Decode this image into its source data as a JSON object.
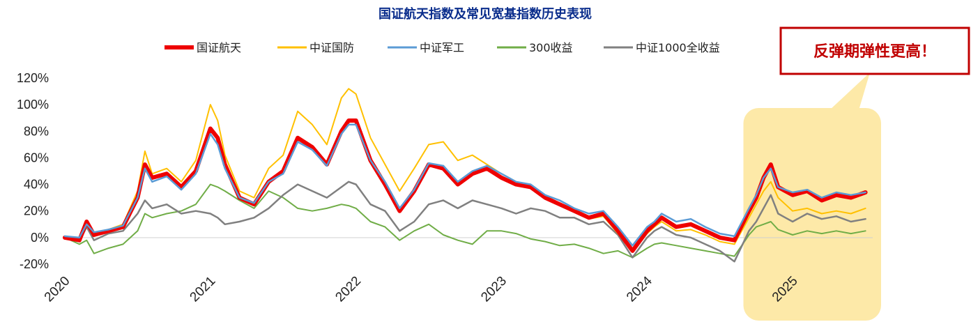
{
  "chart_data": {
    "type": "line",
    "title": "国证航天指数及常见宽基指数历史表现",
    "xlabel": "",
    "ylabel": "",
    "ylim": [
      -20,
      120
    ],
    "yticks": [
      "-20%",
      "0%",
      "20%",
      "40%",
      "60%",
      "80%",
      "100%",
      "120%"
    ],
    "yticks_values": [
      -20,
      0,
      20,
      40,
      60,
      80,
      100,
      120
    ],
    "xticks": [
      "2020",
      "2021",
      "2022",
      "2023",
      "2024",
      "2025"
    ],
    "xticks_values": [
      2020,
      2021,
      2022,
      2023,
      2024,
      2025
    ],
    "xlim": [
      2020,
      2025.55
    ],
    "grid": false,
    "legend_position": "top",
    "highlight": {
      "x_range": [
        2024.7,
        2025.55
      ],
      "color": "#fde9a8"
    },
    "callout": {
      "text": "反弹期弹性更高！",
      "border_color": "#c00000"
    },
    "series": [
      {
        "name": "国证航天",
        "color": "#ee0000",
        "width": 6,
        "x": [
          2020.0,
          2020.1,
          2020.15,
          2020.2,
          2020.3,
          2020.4,
          2020.5,
          2020.55,
          2020.6,
          2020.7,
          2020.8,
          2020.9,
          2021.0,
          2021.05,
          2021.1,
          2021.2,
          2021.3,
          2021.4,
          2021.5,
          2021.6,
          2021.7,
          2021.8,
          2021.9,
          2021.95,
          2022.0,
          2022.1,
          2022.2,
          2022.3,
          2022.4,
          2022.5,
          2022.6,
          2022.7,
          2022.8,
          2022.9,
          2023.0,
          2023.1,
          2023.2,
          2023.3,
          2023.4,
          2023.5,
          2023.6,
          2023.7,
          2023.8,
          2023.9,
          2024.0,
          2024.05,
          2024.1,
          2024.2,
          2024.3,
          2024.4,
          2024.5,
          2024.6,
          2024.7,
          2024.75,
          2024.8,
          2024.85,
          2024.9,
          2024.95,
          2025.0,
          2025.1,
          2025.2,
          2025.3,
          2025.4,
          2025.5
        ],
        "y": [
          0,
          -2,
          12,
          2,
          5,
          8,
          30,
          55,
          45,
          48,
          38,
          50,
          82,
          75,
          55,
          30,
          25,
          42,
          50,
          75,
          68,
          55,
          80,
          88,
          88,
          58,
          40,
          20,
          35,
          55,
          52,
          40,
          48,
          52,
          45,
          40,
          38,
          30,
          25,
          20,
          15,
          18,
          5,
          -10,
          5,
          10,
          15,
          8,
          10,
          5,
          0,
          -2,
          20,
          30,
          45,
          55,
          38,
          35,
          32,
          35,
          28,
          32,
          30,
          34
        ]
      },
      {
        "name": "中证国防",
        "color": "#ffc000",
        "width": 2,
        "x": [
          2020.0,
          2020.1,
          2020.15,
          2020.2,
          2020.3,
          2020.4,
          2020.5,
          2020.55,
          2020.6,
          2020.7,
          2020.8,
          2020.9,
          2021.0,
          2021.05,
          2021.1,
          2021.2,
          2021.3,
          2021.4,
          2021.5,
          2021.6,
          2021.7,
          2021.8,
          2021.9,
          2021.95,
          2022.0,
          2022.1,
          2022.2,
          2022.3,
          2022.4,
          2022.5,
          2022.6,
          2022.7,
          2022.8,
          2022.9,
          2023.0,
          2023.1,
          2023.2,
          2023.3,
          2023.4,
          2023.5,
          2023.6,
          2023.7,
          2023.8,
          2023.9,
          2024.0,
          2024.05,
          2024.1,
          2024.2,
          2024.3,
          2024.4,
          2024.5,
          2024.6,
          2024.7,
          2024.75,
          2024.8,
          2024.85,
          2024.9,
          2024.95,
          2025.0,
          2025.1,
          2025.2,
          2025.3,
          2025.4,
          2025.5
        ],
        "y": [
          0,
          -1,
          10,
          3,
          6,
          10,
          35,
          65,
          48,
          52,
          42,
          58,
          100,
          88,
          62,
          35,
          30,
          52,
          62,
          95,
          85,
          70,
          105,
          112,
          108,
          75,
          55,
          35,
          52,
          70,
          72,
          58,
          62,
          55,
          48,
          42,
          38,
          30,
          25,
          20,
          14,
          16,
          3,
          -10,
          3,
          8,
          12,
          5,
          6,
          2,
          -3,
          -5,
          15,
          25,
          35,
          42,
          30,
          25,
          20,
          22,
          18,
          20,
          18,
          22
        ]
      },
      {
        "name": "中证军工",
        "color": "#5b9bd5",
        "width": 2.5,
        "x": [
          2020.0,
          2020.1,
          2020.15,
          2020.2,
          2020.3,
          2020.4,
          2020.5,
          2020.55,
          2020.6,
          2020.7,
          2020.8,
          2020.9,
          2021.0,
          2021.05,
          2021.1,
          2021.2,
          2021.3,
          2021.4,
          2021.5,
          2021.6,
          2021.7,
          2021.8,
          2021.9,
          2021.95,
          2022.0,
          2022.1,
          2022.2,
          2022.3,
          2022.4,
          2022.5,
          2022.6,
          2022.7,
          2022.8,
          2022.9,
          2023.0,
          2023.1,
          2023.2,
          2023.3,
          2023.4,
          2023.5,
          2023.6,
          2023.7,
          2023.8,
          2023.9,
          2024.0,
          2024.05,
          2024.1,
          2024.2,
          2024.3,
          2024.4,
          2024.5,
          2024.6,
          2024.7,
          2024.75,
          2024.8,
          2024.85,
          2024.9,
          2024.95,
          2025.0,
          2025.1,
          2025.2,
          2025.3,
          2025.4,
          2025.5
        ],
        "y": [
          1,
          0,
          10,
          4,
          6,
          9,
          30,
          52,
          42,
          46,
          36,
          48,
          78,
          70,
          52,
          30,
          26,
          42,
          48,
          72,
          66,
          54,
          78,
          85,
          85,
          58,
          42,
          22,
          36,
          56,
          54,
          42,
          50,
          54,
          48,
          42,
          40,
          32,
          28,
          22,
          18,
          20,
          8,
          -6,
          8,
          12,
          18,
          12,
          14,
          8,
          3,
          1,
          22,
          32,
          45,
          52,
          38,
          36,
          34,
          36,
          30,
          34,
          32,
          34
        ]
      },
      {
        "name": "300收益",
        "color": "#70ad47",
        "width": 2,
        "x": [
          2020.0,
          2020.1,
          2020.15,
          2020.2,
          2020.3,
          2020.4,
          2020.5,
          2020.55,
          2020.6,
          2020.7,
          2020.8,
          2020.9,
          2021.0,
          2021.05,
          2021.1,
          2021.2,
          2021.3,
          2021.4,
          2021.5,
          2021.6,
          2021.7,
          2021.8,
          2021.9,
          2021.95,
          2022.0,
          2022.1,
          2022.2,
          2022.3,
          2022.4,
          2022.5,
          2022.6,
          2022.7,
          2022.8,
          2022.9,
          2023.0,
          2023.1,
          2023.2,
          2023.3,
          2023.4,
          2023.5,
          2023.6,
          2023.7,
          2023.8,
          2023.9,
          2024.0,
          2024.05,
          2024.1,
          2024.2,
          2024.3,
          2024.4,
          2024.5,
          2024.6,
          2024.7,
          2024.75,
          2024.8,
          2024.85,
          2024.9,
          2024.95,
          2025.0,
          2025.1,
          2025.2,
          2025.3,
          2025.4,
          2025.5
        ],
        "y": [
          0,
          -5,
          -2,
          -12,
          -8,
          -5,
          5,
          18,
          15,
          18,
          20,
          25,
          40,
          38,
          35,
          28,
          22,
          35,
          30,
          22,
          20,
          22,
          25,
          24,
          22,
          12,
          8,
          -2,
          5,
          10,
          2,
          -2,
          -5,
          5,
          5,
          3,
          -1,
          -3,
          -6,
          -5,
          -8,
          -12,
          -10,
          -15,
          -8,
          -5,
          -4,
          -6,
          -8,
          -10,
          -12,
          -14,
          2,
          8,
          10,
          12,
          6,
          4,
          2,
          5,
          3,
          5,
          3,
          5
        ]
      },
      {
        "name": "中证1000全收益",
        "color": "#808080",
        "width": 2.5,
        "x": [
          2020.0,
          2020.1,
          2020.15,
          2020.2,
          2020.3,
          2020.4,
          2020.5,
          2020.55,
          2020.6,
          2020.7,
          2020.8,
          2020.9,
          2021.0,
          2021.05,
          2021.1,
          2021.2,
          2021.3,
          2021.4,
          2021.5,
          2021.6,
          2021.7,
          2021.8,
          2021.9,
          2021.95,
          2022.0,
          2022.1,
          2022.2,
          2022.3,
          2022.4,
          2022.5,
          2022.6,
          2022.7,
          2022.8,
          2022.9,
          2023.0,
          2023.1,
          2023.2,
          2023.3,
          2023.4,
          2023.5,
          2023.6,
          2023.7,
          2023.8,
          2023.9,
          2024.0,
          2024.05,
          2024.1,
          2024.2,
          2024.3,
          2024.4,
          2024.5,
          2024.6,
          2024.7,
          2024.75,
          2024.8,
          2024.85,
          2024.9,
          2024.95,
          2025.0,
          2025.1,
          2025.2,
          2025.3,
          2025.4,
          2025.5
        ],
        "y": [
          0,
          -3,
          8,
          -2,
          3,
          5,
          18,
          28,
          22,
          25,
          18,
          20,
          18,
          15,
          10,
          12,
          15,
          22,
          32,
          40,
          35,
          30,
          38,
          42,
          40,
          25,
          20,
          5,
          12,
          25,
          28,
          22,
          28,
          25,
          22,
          18,
          22,
          20,
          15,
          15,
          10,
          12,
          2,
          -15,
          0,
          5,
          8,
          2,
          0,
          -5,
          -10,
          -18,
          5,
          12,
          22,
          32,
          18,
          15,
          12,
          18,
          14,
          16,
          12,
          14
        ]
      }
    ]
  }
}
